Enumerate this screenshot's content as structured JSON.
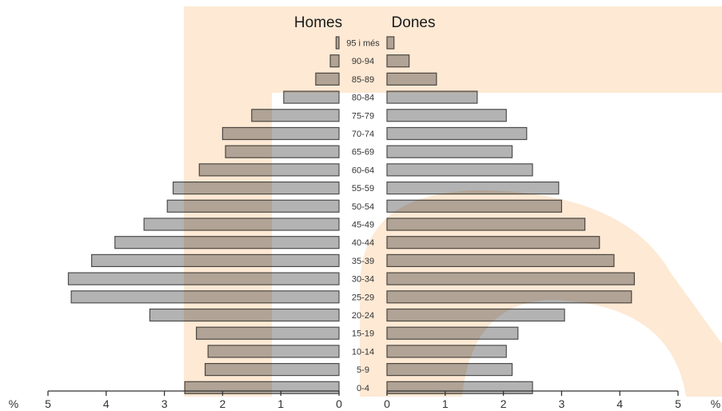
{
  "chart_data": {
    "type": "bar",
    "orientation": "horizontal",
    "layout": "population-pyramid",
    "title": "",
    "left_header": "Homes",
    "right_header": "Dones",
    "unit_label": "%",
    "categories": [
      "95 i més",
      "90-94",
      "85-89",
      "80-84",
      "75-79",
      "70-74",
      "65-69",
      "60-64",
      "55-59",
      "50-54",
      "45-49",
      "40-44",
      "35-39",
      "30-34",
      "25-29",
      "20-24",
      "15-19",
      "10-14",
      "5-9",
      "0-4"
    ],
    "series": [
      {
        "name": "Homes",
        "values": [
          0.05,
          0.15,
          0.4,
          0.95,
          1.5,
          2.0,
          1.95,
          2.4,
          2.85,
          2.95,
          3.35,
          3.85,
          4.25,
          4.65,
          4.6,
          3.25,
          2.45,
          2.25,
          2.3,
          2.65
        ]
      },
      {
        "name": "Dones",
        "values": [
          0.12,
          0.38,
          0.85,
          1.55,
          2.05,
          2.4,
          2.15,
          2.5,
          2.95,
          3.0,
          3.4,
          3.65,
          3.9,
          4.25,
          4.2,
          3.05,
          2.25,
          2.05,
          2.15,
          2.5
        ]
      }
    ],
    "xlim": [
      0,
      5
    ],
    "x_ticks": [
      "0",
      "1",
      "2",
      "3",
      "4",
      "5"
    ],
    "grid": false,
    "legend": "none"
  },
  "colors": {
    "bar_fill": "#b3b3b3",
    "bar_stroke": "#4d4d4d",
    "watermark": "#fde9d4",
    "text": "#333333"
  }
}
